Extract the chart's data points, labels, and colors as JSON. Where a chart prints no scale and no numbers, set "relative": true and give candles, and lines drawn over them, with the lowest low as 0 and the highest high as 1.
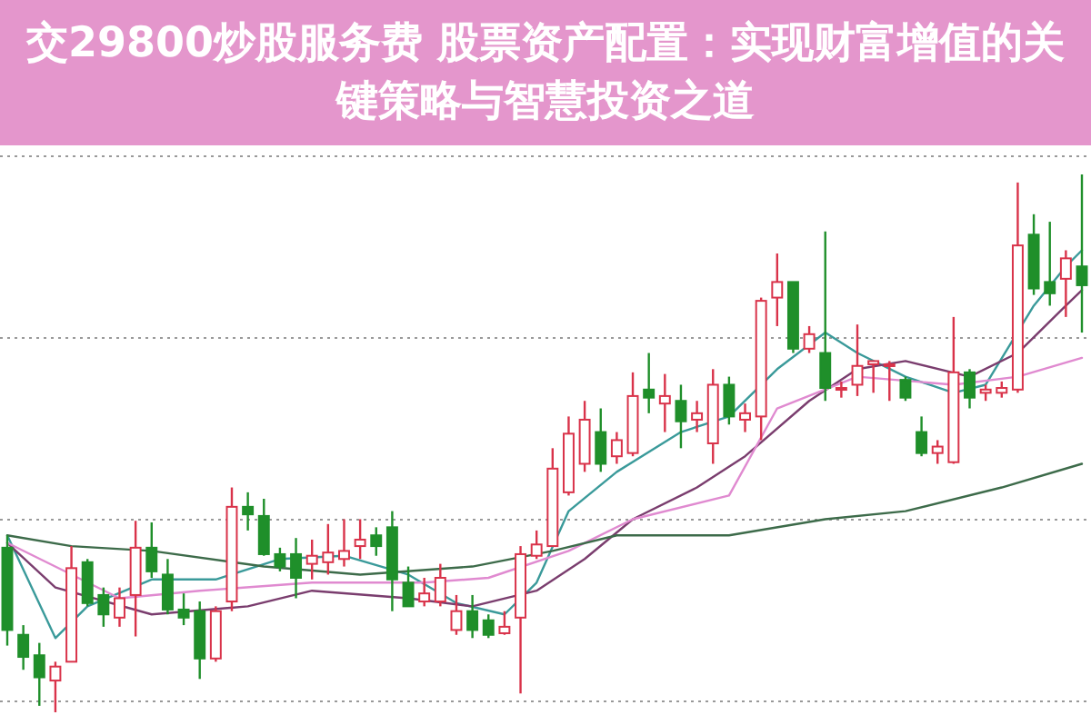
{
  "chart_data": {
    "type": "candlestick",
    "title": "交29800炒股服务费 股票资产配置：实现财富增值的关键策略与智慧投资之道",
    "relative": true,
    "grid": "y",
    "colors": [
      "#1f8f2a",
      "#1f8f2a",
      "#1f8f2a",
      "#d9334a",
      "#d9334a",
      "#1f8f2a",
      "#1f8f2a",
      "#d9334a",
      "#d9334a",
      "#1f8f2a",
      "#1f8f2a",
      "#1f8f2a",
      "#1f8f2a",
      "#d9334a",
      "#d9334a",
      "#1f8f2a",
      "#1f8f2a",
      "#1f8f2a",
      "#1f8f2a",
      "#d9334a",
      "#d9334a",
      "#d9334a",
      "#d9334a",
      "#1f8f2a",
      "#1f8f2a",
      "#1f8f2a",
      "#d9334a",
      "#d9334a",
      "#d9334a",
      "#1f8f2a",
      "#1f8f2a",
      "#d9334a",
      "#d9334a",
      "#d9334a",
      "#d9334a",
      "#d9334a",
      "#d9334a",
      "#1f8f2a",
      "#d9334a",
      "#d9334a",
      "#1f8f2a",
      "#d9334a",
      "#1f8f2a",
      "#d9334a",
      "#d9334a",
      "#1f8f2a",
      "#d9334a",
      "#d9334a",
      "#d9334a",
      "#1f8f2a",
      "#d9334a",
      "#1f8f2a",
      "#d9334a",
      "#d9334a",
      "#d9334a",
      "#d9334a",
      "#1f8f2a",
      "#1f8f2a",
      "#d9334a",
      "#d9334a",
      "#1f8f2a",
      "#d9334a",
      "#d9334a",
      "#d9334a",
      "#1f8f2a",
      "#1f8f2a",
      "#d9334a",
      "#1f8f2a"
    ],
    "categories": [
      null,
      null,
      null,
      null,
      null,
      null,
      null,
      null,
      null,
      null,
      null,
      null,
      null,
      null,
      null,
      null,
      null,
      null,
      null,
      null,
      null,
      null,
      null,
      null,
      null,
      null,
      null,
      null,
      null,
      null,
      null,
      null,
      null,
      null,
      null,
      null,
      null,
      null,
      null,
      null,
      null,
      null,
      null,
      null,
      null,
      null,
      null,
      null,
      null,
      null,
      null,
      null,
      null,
      null,
      null,
      null,
      null,
      null,
      null,
      null,
      null,
      null,
      null,
      null,
      null,
      null,
      null,
      null
    ],
    "ohlc": [
      [
        0.306,
        0.329,
        0.124,
        0.153
      ],
      [
        0.144,
        0.162,
        0.079,
        0.103
      ],
      [
        0.106,
        0.129,
        0.012,
        0.065
      ],
      [
        0.059,
        0.094,
        0,
        0.085
      ],
      [
        0.094,
        0.309,
        0.094,
        0.268
      ],
      [
        0.279,
        0.285,
        0.197,
        0.203
      ],
      [
        0.218,
        0.232,
        0.159,
        0.182
      ],
      [
        0.176,
        0.232,
        0.159,
        0.212
      ],
      [
        0.218,
        0.356,
        0.141,
        0.306
      ],
      [
        0.306,
        0.353,
        0.25,
        0.262
      ],
      [
        0.256,
        0.285,
        0.182,
        0.191
      ],
      [
        0.191,
        0.221,
        0.162,
        0.176
      ],
      [
        0.188,
        0.206,
        0.062,
        0.1
      ],
      [
        0.1,
        0.197,
        0.094,
        0.188
      ],
      [
        0.206,
        0.418,
        0.188,
        0.382
      ],
      [
        0.382,
        0.409,
        0.338,
        0.368
      ],
      [
        0.365,
        0.397,
        0.291,
        0.294
      ],
      [
        0.294,
        0.306,
        0.262,
        0.271
      ],
      [
        0.294,
        0.324,
        0.212,
        0.25
      ],
      [
        0.276,
        0.321,
        0.247,
        0.291
      ],
      [
        0.279,
        0.35,
        0.256,
        0.297
      ],
      [
        0.285,
        0.359,
        0.271,
        0.3
      ],
      [
        0.309,
        0.359,
        0.285,
        0.321
      ],
      [
        0.329,
        0.344,
        0.291,
        0.309
      ],
      [
        0.344,
        0.374,
        0.188,
        0.247
      ],
      [
        0.241,
        0.271,
        0.197,
        0.197
      ],
      [
        0.206,
        0.25,
        0.197,
        0.221
      ],
      [
        0.206,
        0.276,
        0.197,
        0.25
      ],
      [
        0.153,
        0.218,
        0.144,
        0.188
      ],
      [
        0.188,
        0.218,
        0.138,
        0.153
      ],
      [
        0.171,
        0.182,
        0.138,
        0.144
      ],
      [
        0.147,
        0.188,
        0.144,
        0.159
      ],
      [
        0.176,
        0.309,
        0.035,
        0.294
      ],
      [
        0.291,
        0.338,
        0.285,
        0.312
      ],
      [
        0.309,
        0.491,
        0.309,
        0.453
      ],
      [
        0.409,
        0.55,
        0.403,
        0.518
      ],
      [
        0.462,
        0.579,
        0.447,
        0.544
      ],
      [
        0.521,
        0.565,
        0.447,
        0.462
      ],
      [
        0.476,
        0.521,
        0.462,
        0.506
      ],
      [
        0.482,
        0.632,
        0.476,
        0.588
      ],
      [
        0.6,
        0.668,
        0.556,
        0.585
      ],
      [
        0.574,
        0.629,
        0.521,
        0.588
      ],
      [
        0.579,
        0.609,
        0.491,
        0.541
      ],
      [
        0.544,
        0.579,
        0.521,
        0.556
      ],
      [
        0.5,
        0.638,
        0.462,
        0.609
      ],
      [
        0.609,
        0.624,
        0.535,
        0.55
      ],
      [
        0.544,
        0.574,
        0.521,
        0.556
      ],
      [
        0.55,
        0.771,
        0.506,
        0.765
      ],
      [
        0.771,
        0.853,
        0.718,
        0.8
      ],
      [
        0.8,
        0.8,
        0.668,
        0.676
      ],
      [
        0.676,
        0.718,
        0.668,
        0.703
      ],
      [
        0.668,
        0.894,
        0.579,
        0.603
      ],
      [
        0.6,
        0.615,
        0.585,
        0.603
      ],
      [
        0.609,
        0.721,
        0.588,
        0.644
      ],
      [
        0.647,
        0.653,
        0.594,
        0.653
      ],
      [
        0.644,
        0.653,
        0.579,
        0.647
      ],
      [
        0.618,
        0.624,
        0.579,
        0.585
      ],
      [
        0.521,
        0.55,
        0.476,
        0.482
      ],
      [
        0.482,
        0.506,
        0.462,
        0.494
      ],
      [
        0.465,
        0.735,
        0.462,
        0.632
      ],
      [
        0.632,
        0.638,
        0.565,
        0.585
      ],
      [
        0.594,
        0.609,
        0.579,
        0.6
      ],
      [
        0.594,
        0.615,
        0.585,
        0.603
      ],
      [
        0.6,
        0.985,
        0.594,
        0.868
      ],
      [
        0.888,
        0.926,
        0.776,
        0.788
      ],
      [
        0.8,
        0.912,
        0.756,
        0.779
      ],
      [
        0.806,
        0.859,
        0.735,
        0.844
      ],
      [
        0.829,
        1.0,
        0.706,
        0.794
      ]
    ],
    "series": [
      {
        "type": "line",
        "color": "#3a9a9a",
        "values": [
          0.329,
          null,
          null,
          0.138,
          null,
          0.197,
          null,
          null,
          null,
          0.247,
          null,
          null,
          null,
          0.247,
          null,
          null,
          null,
          0.285,
          null,
          null,
          null,
          0.291,
          null,
          null,
          null,
          0.256,
          null,
          null,
          0.203,
          null,
          null,
          0.182,
          null,
          0.241,
          null,
          0.374,
          null,
          null,
          0.447,
          null,
          null,
          null,
          0.521,
          null,
          null,
          0.55,
          null,
          null,
          0.638,
          null,
          null,
          0.706,
          null,
          0.668,
          null,
          null,
          0.624,
          null,
          null,
          0.594,
          null,
          0.609,
          null,
          null,
          0.756,
          null,
          0.829,
          0.859
        ]
      },
      {
        "type": "line",
        "color": "#7a3d6e",
        "values": [
          0.315,
          null,
          null,
          0.232,
          null,
          null,
          null,
          null,
          null,
          0.182,
          null,
          null,
          null,
          null,
          null,
          0.197,
          null,
          null,
          null,
          0.226,
          null,
          null,
          null,
          null,
          null,
          0.212,
          null,
          null,
          null,
          0.197,
          null,
          null,
          null,
          0.226,
          null,
          null,
          0.285,
          null,
          null,
          0.359,
          null,
          null,
          null,
          0.418,
          null,
          null,
          0.476,
          null,
          null,
          null,
          0.579,
          null,
          null,
          0.638,
          null,
          null,
          0.653,
          null,
          null,
          null,
          0.624,
          null,
          null,
          0.668,
          null,
          null,
          0.756,
          0.785
        ]
      },
      {
        "type": "line",
        "color": "#e08ad0",
        "values": [
          0.315,
          null,
          null,
          null,
          null,
          null,
          null,
          0.212,
          null,
          null,
          null,
          null,
          0.226,
          null,
          null,
          null,
          null,
          null,
          null,
          0.241,
          null,
          null,
          null,
          null,
          null,
          null,
          0.241,
          null,
          null,
          null,
          0.25,
          null,
          null,
          null,
          null,
          0.3,
          null,
          null,
          null,
          0.359,
          null,
          null,
          null,
          null,
          null,
          0.403,
          null,
          null,
          0.565,
          null,
          null,
          null,
          null,
          0.624,
          null,
          null,
          null,
          null,
          null,
          0.609,
          null,
          null,
          null,
          0.624,
          null,
          null,
          null,
          0.659
        ]
      },
      {
        "type": "line",
        "color": "#3d6b4a",
        "values": [
          0.329,
          null,
          null,
          null,
          0.309,
          null,
          null,
          null,
          null,
          0.3,
          null,
          null,
          null,
          null,
          null,
          null,
          0.271,
          null,
          null,
          null,
          null,
          null,
          0.256,
          null,
          null,
          null,
          null,
          null,
          null,
          0.271,
          null,
          null,
          null,
          null,
          0.3,
          null,
          null,
          null,
          0.329,
          null,
          null,
          null,
          null,
          null,
          null,
          0.329,
          null,
          null,
          null,
          null,
          null,
          0.359,
          null,
          null,
          null,
          null,
          0.374,
          null,
          null,
          null,
          null,
          null,
          0.418,
          null,
          null,
          null,
          null,
          0.462
        ]
      }
    ]
  }
}
